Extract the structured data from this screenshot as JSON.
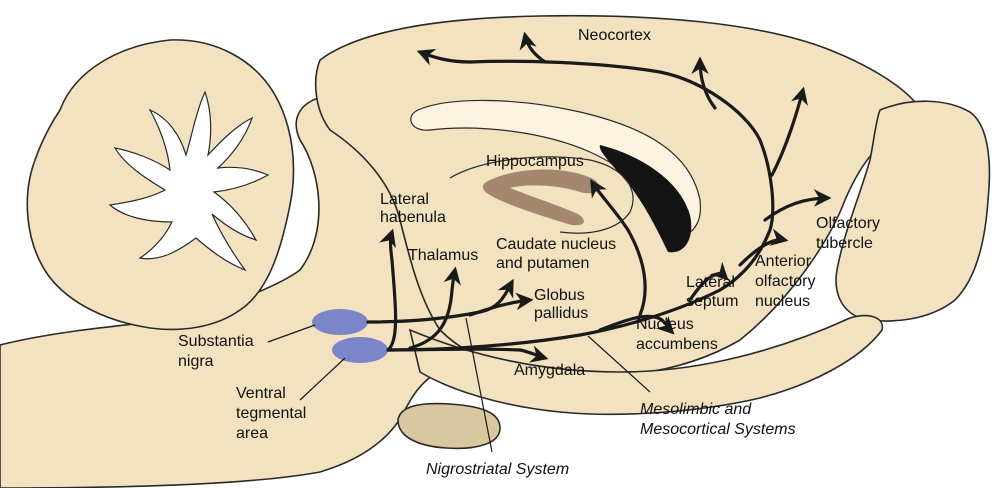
{
  "colors": {
    "tissue": "#f2e2bf",
    "tissue_dark": "#d9c7a0",
    "white_matter": "#ffffff",
    "nucleus": "#7b86c9",
    "hippocampus": "#a58670",
    "ventricle": "#141414",
    "pathway": "#1a1a1a"
  },
  "labels": {
    "neocortex": "Neocortex",
    "hippocampus": "Hippocampus",
    "lateral_habenula_1": "Lateral",
    "lateral_habenula_2": "habenula",
    "thalamus": "Thalamus",
    "caudate_1": "Caudate nucleus",
    "caudate_2": "and putamen",
    "globus_1": "Globus",
    "globus_2": "pallidus",
    "olfactory_tubercle_1": "Olfactory",
    "olfactory_tubercle_2": "tubercle",
    "anterior_olfactory_1": "Anterior",
    "anterior_olfactory_2": "olfactory",
    "anterior_olfactory_3": "nucleus",
    "lateral_septum_1": "Lateral",
    "lateral_septum_2": "septum",
    "nucleus_accumbens_1": "Nucleus",
    "nucleus_accumbens_2": "accumbens",
    "amygdala": "Amygdala",
    "substantia_nigra_1": "Substantia",
    "substantia_nigra_2": "nigra",
    "vta_1": "Ventral",
    "vta_2": "tegmental",
    "vta_3": "area",
    "mesolimbic_1": "Mesolimbic and",
    "mesolimbic_2": "Mesocortical Systems",
    "nigrostriatal": "Nigrostriatal System"
  }
}
